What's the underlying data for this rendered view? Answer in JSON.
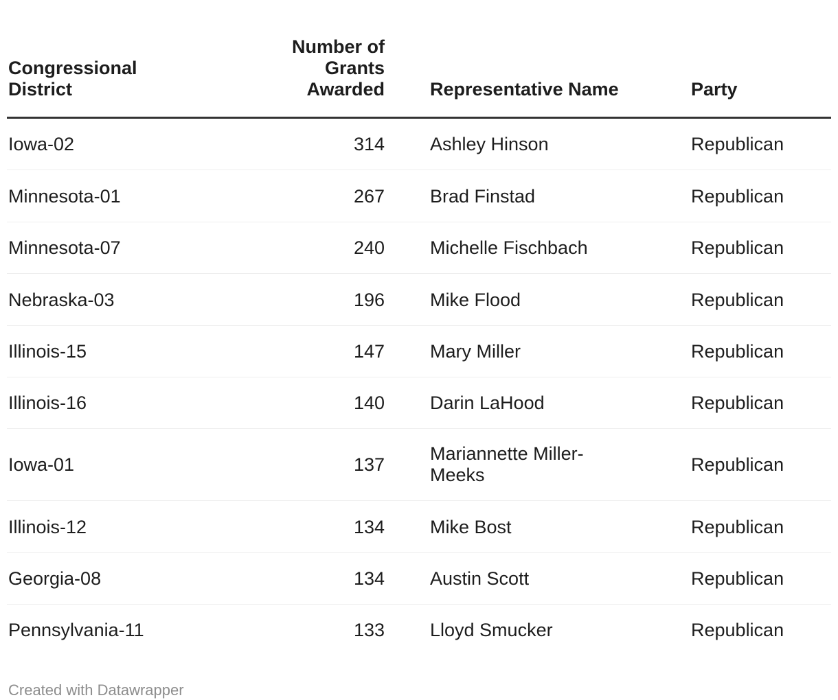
{
  "chart_data": {
    "type": "table",
    "columns": [
      "Congressional District",
      "Number of Grants Awarded",
      "Representative Name",
      "Party"
    ],
    "rows": [
      [
        "Iowa-02",
        314,
        "Ashley Hinson",
        "Republican"
      ],
      [
        "Minnesota-01",
        267,
        "Brad Finstad",
        "Republican"
      ],
      [
        "Minnesota-07",
        240,
        "Michelle Fischbach",
        "Republican"
      ],
      [
        "Nebraska-03",
        196,
        "Mike Flood",
        "Republican"
      ],
      [
        "Illinois-15",
        147,
        "Mary Miller",
        "Republican"
      ],
      [
        "Illinois-16",
        140,
        "Darin LaHood",
        "Republican"
      ],
      [
        "Iowa-01",
        137,
        "Mariannette Miller-Meeks",
        "Republican"
      ],
      [
        "Illinois-12",
        134,
        "Mike Bost",
        "Republican"
      ],
      [
        "Georgia-08",
        134,
        "Austin Scott",
        "Republican"
      ],
      [
        "Pennsylvania-11",
        133,
        "Lloyd Smucker",
        "Republican"
      ]
    ],
    "layout_hints": {
      "header_rule_color": "#333333",
      "row_divider_color": "#eeeeee",
      "text_color": "#1d1d1d",
      "number_column_align": "right"
    }
  },
  "footer": {
    "attribution": "Created with Datawrapper",
    "color": "#8d8d8d"
  }
}
